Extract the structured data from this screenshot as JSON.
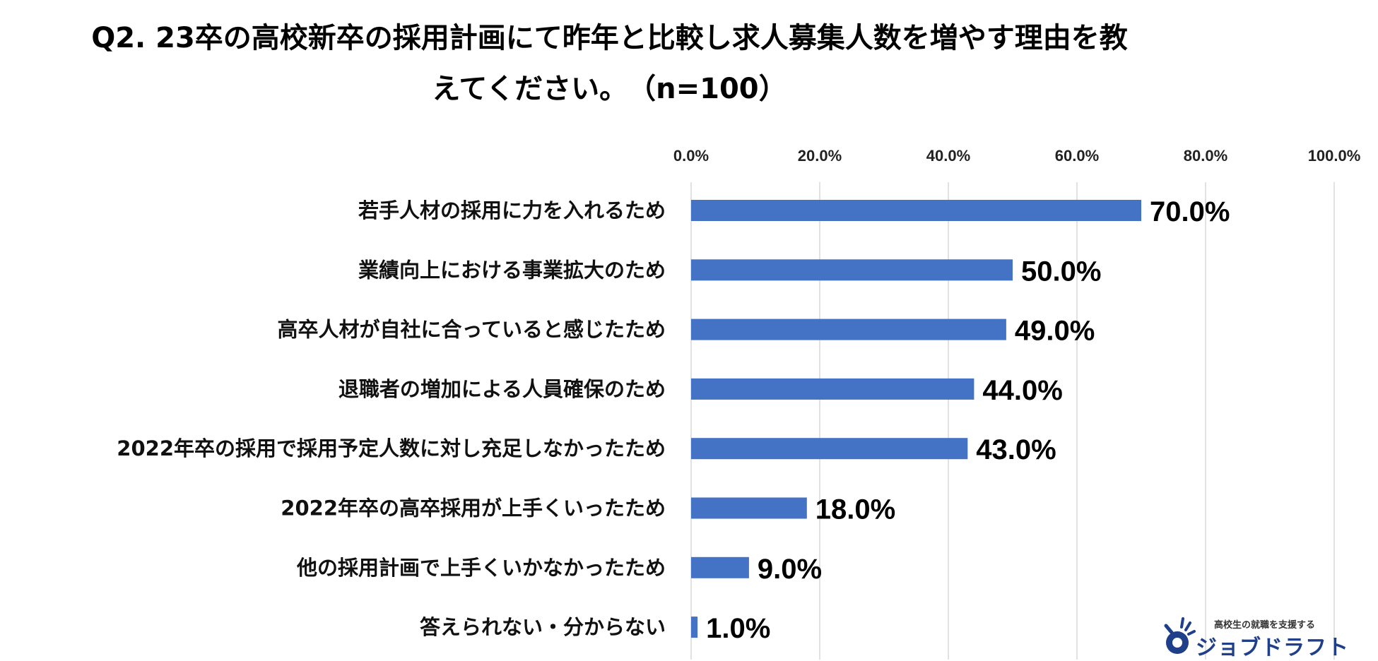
{
  "title_lines": [
    "Q2. 23卒の高校新卒の採用計画にて昨年と比較し求人募集人数を増やす理由を教",
    "えてください。　（n=100）"
  ],
  "chart_data": {
    "type": "bar",
    "orientation": "horizontal",
    "title": "Q2. 23卒の高校新卒の採用計画にて昨年と比較し求人募集人数を増やす理由を教えてください。　（n=100）",
    "categories": [
      "若手人材の採用に力を入れるため",
      "業績向上における事業拡大のため",
      "高卒人材が自社に合っていると感じたため",
      "退職者の増加による人員確保のため",
      "2022年卒の採用で採用予定人数に対し充足しなかったため",
      "2022年卒の高卒採用が上手くいったため",
      "他の採用計画で上手くいかなかったため",
      "答えられない・分からない"
    ],
    "values": [
      70.0,
      50.0,
      49.0,
      44.0,
      43.0,
      18.0,
      9.0,
      1.0
    ],
    "data_labels": [
      "70.0%",
      "50.0%",
      "49.0%",
      "44.0%",
      "43.0%",
      "18.0%",
      "9.0%",
      "1.0%"
    ],
    "xlim": [
      0,
      100
    ],
    "x_ticks": [
      "0.0%",
      "20.0%",
      "40.0%",
      "60.0%",
      "80.0%",
      "100.0%"
    ],
    "x_axis_position": "top",
    "grid": true,
    "legend": "none",
    "bar_color": "#4472C4",
    "grid_color": "#D9D9D9"
  },
  "logo": {
    "tagline": "高校生の就職を支援する",
    "brand": "ジョブドラフト",
    "color": "#1f3f8a"
  }
}
